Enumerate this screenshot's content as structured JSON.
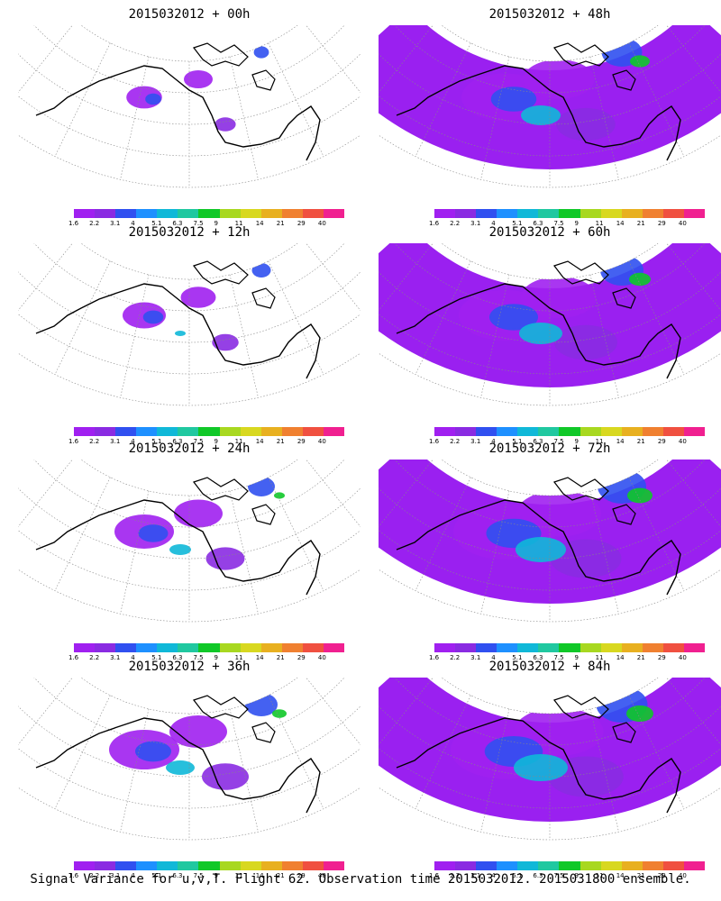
{
  "panels": [
    {
      "title": "2015032012 + 00h",
      "intensity": 0.08
    },
    {
      "title": "2015032012 + 48h",
      "intensity": 0.55
    },
    {
      "title": "2015032012 + 12h",
      "intensity": 0.15
    },
    {
      "title": "2015032012 + 60h",
      "intensity": 0.6
    },
    {
      "title": "2015032012 + 24h",
      "intensity": 0.3
    },
    {
      "title": "2015032012 + 72h",
      "intensity": 0.7
    },
    {
      "title": "2015032012 + 36h",
      "intensity": 0.4
    },
    {
      "title": "2015032012 + 84h",
      "intensity": 0.75
    }
  ],
  "colorbar": {
    "colors": [
      "#a020f0",
      "#8a2be2",
      "#3050f0",
      "#1e90ff",
      "#10b8d8",
      "#20c8a0",
      "#10c828",
      "#a8d820",
      "#d8d820",
      "#e8b020",
      "#f08030",
      "#f05040",
      "#f02090"
    ],
    "labels": [
      "1.6",
      "2.2",
      "3.1",
      "4",
      "5.1",
      "6.3",
      "7.5",
      "9",
      "11",
      "14",
      "21",
      "29",
      "40"
    ]
  },
  "caption": "Signal Variance for u,v,T. Flight 62. Observation time 2015032012. 2015031800 ensemble."
}
